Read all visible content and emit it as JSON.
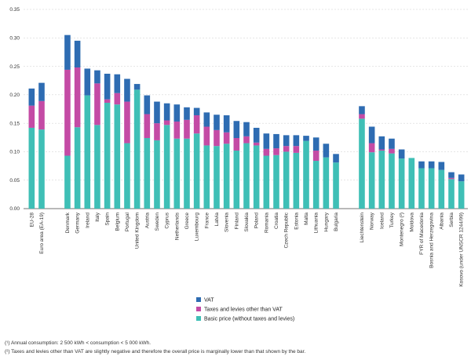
{
  "chart_data": {
    "type": "bar",
    "stacked": true,
    "ylim": [
      0,
      0.35
    ],
    "yticks": [
      "0.00",
      "0.05",
      "0.10",
      "0.15",
      "0.20",
      "0.25",
      "0.30",
      "0.35"
    ],
    "grid": true,
    "legend_position": "bottom-center",
    "colors": {
      "vat": "#2e6cb2",
      "taxes": "#c44ba5",
      "basic": "#3fbfb6"
    },
    "groups": [
      [
        "EU-28",
        "Euro area (EA-19)"
      ],
      [
        "Denmark",
        "Germany",
        "Ireland",
        "Italy",
        "Spain",
        "Belgium",
        "Portugal",
        "United Kingdom",
        "Austria",
        "Sweden",
        "Cyprus",
        "Netherlands",
        "Greece",
        "Luxembourg",
        "France",
        "Latvia",
        "Slovenia",
        "Finland",
        "Slovakia",
        "Poland",
        "Romania",
        "Croatia",
        "Czech Republic",
        "Estonia",
        "Malta",
        "Lithuania",
        "Hungary",
        "Bulgaria"
      ],
      [
        "Liechtenstein",
        "Norway",
        "Iceland",
        "Turkey",
        "Montenegro (²)",
        "Moldova",
        "FYR of Macedonia",
        "Bosnia and Herzegovina",
        "Albania",
        "Serbia",
        "Kosovo (under UNSCR 1244/99)"
      ]
    ],
    "series": [
      {
        "name": "Basic price (without taxes and levies)",
        "key": "basic",
        "values": [
          0.142,
          0.139,
          0.093,
          0.143,
          0.199,
          0.147,
          0.186,
          0.183,
          0.115,
          0.209,
          0.124,
          0.12,
          0.147,
          0.123,
          0.123,
          0.132,
          0.111,
          0.11,
          0.114,
          0.102,
          0.115,
          0.111,
          0.093,
          0.094,
          0.1,
          0.098,
          0.119,
          0.084,
          0.09,
          0.081,
          0.158,
          0.099,
          0.102,
          0.097,
          0.088,
          0.089,
          0.071,
          0.071,
          0.068,
          0.052,
          0.048
        ]
      },
      {
        "name": "Taxes and levies other than VAT",
        "key": "taxes",
        "values": [
          0.039,
          0.05,
          0.151,
          0.105,
          0.0,
          0.073,
          0.006,
          0.02,
          0.073,
          0.0,
          0.042,
          0.03,
          0.008,
          0.03,
          0.033,
          0.032,
          0.033,
          0.028,
          0.02,
          0.022,
          0.012,
          0.005,
          0.012,
          0.012,
          0.01,
          0.012,
          0.0,
          0.018,
          0.0,
          0.0,
          0.008,
          0.016,
          0.002,
          0.008,
          0.0,
          0.0,
          0.0,
          0.0,
          0.0,
          0.002,
          0.0
        ]
      },
      {
        "name": "VAT",
        "key": "vat",
        "values": [
          0.03,
          0.032,
          0.061,
          0.047,
          0.047,
          0.023,
          0.045,
          0.033,
          0.04,
          0.01,
          0.033,
          0.038,
          0.03,
          0.03,
          0.022,
          0.013,
          0.025,
          0.027,
          0.03,
          0.03,
          0.025,
          0.026,
          0.027,
          0.025,
          0.019,
          0.019,
          0.009,
          0.023,
          0.024,
          0.015,
          0.014,
          0.029,
          0.023,
          0.018,
          0.016,
          0.0,
          0.012,
          0.012,
          0.014,
          0.01,
          0.012
        ]
      }
    ],
    "legend_order": [
      "vat",
      "taxes",
      "basic"
    ]
  },
  "footnotes": [
    "(¹) Annual consumption: 2 500 kWh < consumption < 5 000 kWh.",
    "(²) Taxes and levies other than VAT are slightly negative and therefore the overall price is marginally lower than that shown by the bar."
  ]
}
